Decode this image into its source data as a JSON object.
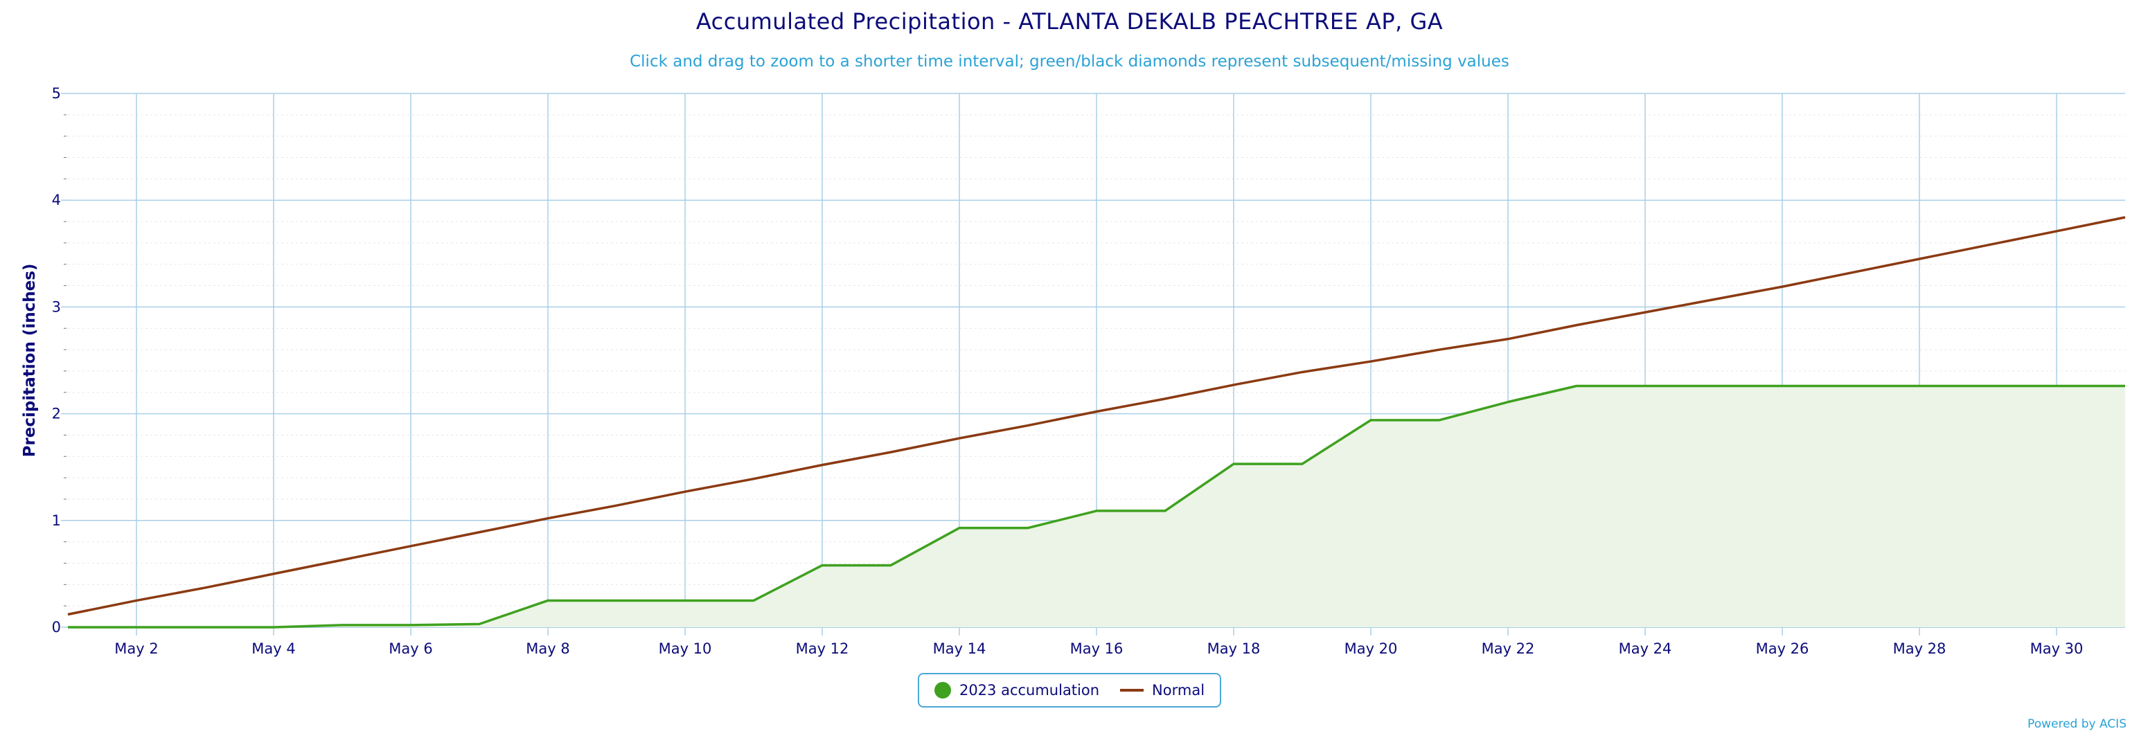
{
  "title": "Accumulated Precipitation - ATLANTA DEKALB PEACHTREE AP, GA",
  "subtitle": "Click and drag to zoom to a shorter time interval; green/black diamonds represent subsequent/missing values",
  "credit": "Powered by ACIS",
  "colors": {
    "accumulation_line": "#3fa11f",
    "accumulation_fill": "#ebf4e6",
    "normal_line": "#8b3a12",
    "grid": "#a9cfe8",
    "minor_grid": "#e7e7e7",
    "text": "#0b0b7a",
    "subtitle": "#2aa2d6"
  },
  "chart_data": {
    "type": "line",
    "title": "Accumulated Precipitation - ATLANTA DEKALB PEACHTREE AP, GA",
    "subtitle": "Click and drag to zoom to a shorter time interval; green/black diamonds represent subsequent/missing values",
    "xlabel": "",
    "ylabel": "Precipitation (inches)",
    "ylim": [
      0,
      5
    ],
    "yticks": [
      0,
      1,
      2,
      3,
      4,
      5
    ],
    "xlim": [
      "2023-05-01",
      "2023-05-31"
    ],
    "xtick_labels": [
      "May 2",
      "May 4",
      "May 6",
      "May 8",
      "May 10",
      "May 12",
      "May 14",
      "May 16",
      "May 18",
      "May 20",
      "May 22",
      "May 24",
      "May 26",
      "May 28",
      "May 30"
    ],
    "xtick_days": [
      2,
      4,
      6,
      8,
      10,
      12,
      14,
      16,
      18,
      20,
      22,
      24,
      26,
      28,
      30
    ],
    "grid": true,
    "legend_placement": "bottom-center",
    "x": [
      1,
      2,
      3,
      4,
      5,
      6,
      7,
      8,
      9,
      10,
      11,
      12,
      13,
      14,
      15,
      16,
      17,
      18,
      19,
      20,
      21,
      22,
      23,
      24,
      25,
      26,
      27,
      28,
      29,
      30,
      31
    ],
    "series": [
      {
        "name": "2023 accumulation",
        "type": "area",
        "values": [
          0,
          0,
          0,
          0,
          0.02,
          0.02,
          0.03,
          0.25,
          0.25,
          0.25,
          0.25,
          0.58,
          0.58,
          0.93,
          0.93,
          1.09,
          1.09,
          1.53,
          1.53,
          1.94,
          1.94,
          2.11,
          2.26,
          2.26,
          2.26,
          2.26,
          2.26,
          2.26,
          2.26,
          2.26,
          2.26
        ]
      },
      {
        "name": "Normal",
        "type": "line",
        "values": [
          0.12,
          0.25,
          0.37,
          0.5,
          0.63,
          0.76,
          0.89,
          1.02,
          1.14,
          1.27,
          1.39,
          1.52,
          1.64,
          1.77,
          1.89,
          2.02,
          2.14,
          2.27,
          2.39,
          2.49,
          2.6,
          2.7,
          2.83,
          2.95,
          3.07,
          3.19,
          3.32,
          3.45,
          3.58,
          3.71,
          3.84
        ]
      }
    ]
  }
}
